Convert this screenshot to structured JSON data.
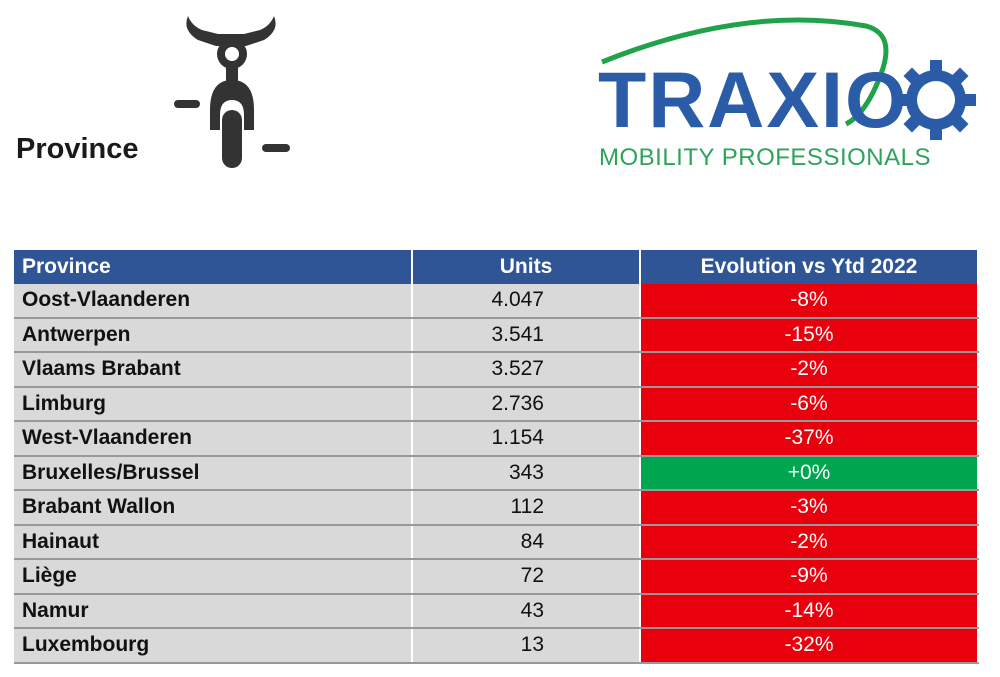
{
  "header": {
    "title": "Province",
    "icon": "motorcycle-icon"
  },
  "logo": {
    "word": "TRAXIO",
    "tagline": "MOBILITY PROFESSIONALS"
  },
  "colors": {
    "header_bg": "#2f5597",
    "negative": "#e8000d",
    "positive": "#00a550",
    "row_bg": "#d9d9d9"
  },
  "table": {
    "columns": [
      "Province",
      "Units",
      "Evolution vs Ytd 2022"
    ],
    "rows": [
      {
        "province": "Oost-Vlaanderen",
        "units": "4.047",
        "evolution": "-8%"
      },
      {
        "province": "Antwerpen",
        "units": "3.541",
        "evolution": "-15%"
      },
      {
        "province": "Vlaams Brabant",
        "units": "3.527",
        "evolution": "-2%"
      },
      {
        "province": "Limburg",
        "units": "2.736",
        "evolution": "-6%"
      },
      {
        "province": "West-Vlaanderen",
        "units": "1.154",
        "evolution": "-37%"
      },
      {
        "province": "Bruxelles/Brussel",
        "units": "343",
        "evolution": "+0%"
      },
      {
        "province": "Brabant Wallon",
        "units": "112",
        "evolution": "-3%"
      },
      {
        "province": "Hainaut",
        "units": "84",
        "evolution": "-2%"
      },
      {
        "province": "Liège",
        "units": "72",
        "evolution": "-9%"
      },
      {
        "province": "Namur",
        "units": "43",
        "evolution": "-14%"
      },
      {
        "province": "Luxembourg",
        "units": "13",
        "evolution": "-32%"
      }
    ]
  }
}
